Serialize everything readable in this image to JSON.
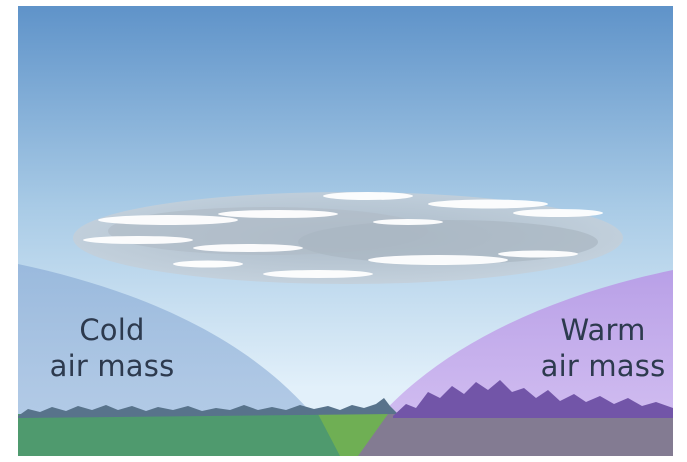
{
  "diagram": {
    "cold_air_mass": {
      "line1": "Cold",
      "line2": "air mass",
      "color": "#8fb0d8"
    },
    "warm_air_mass": {
      "line1": "Warm",
      "line2": "air mass",
      "color": "#b896e6"
    },
    "sky_colors": [
      "#5f93c9",
      "#a9cbe6",
      "#e2f0fa"
    ],
    "cloud_colors": [
      "#b4bfc9",
      "#ffffff"
    ],
    "ground_colors": {
      "cold": "#4f9a6e",
      "neutral": "#6faf54",
      "warm": "#837b92",
      "horizon_ridge": "#58738b",
      "warm_ridge": "#7255a8"
    }
  }
}
